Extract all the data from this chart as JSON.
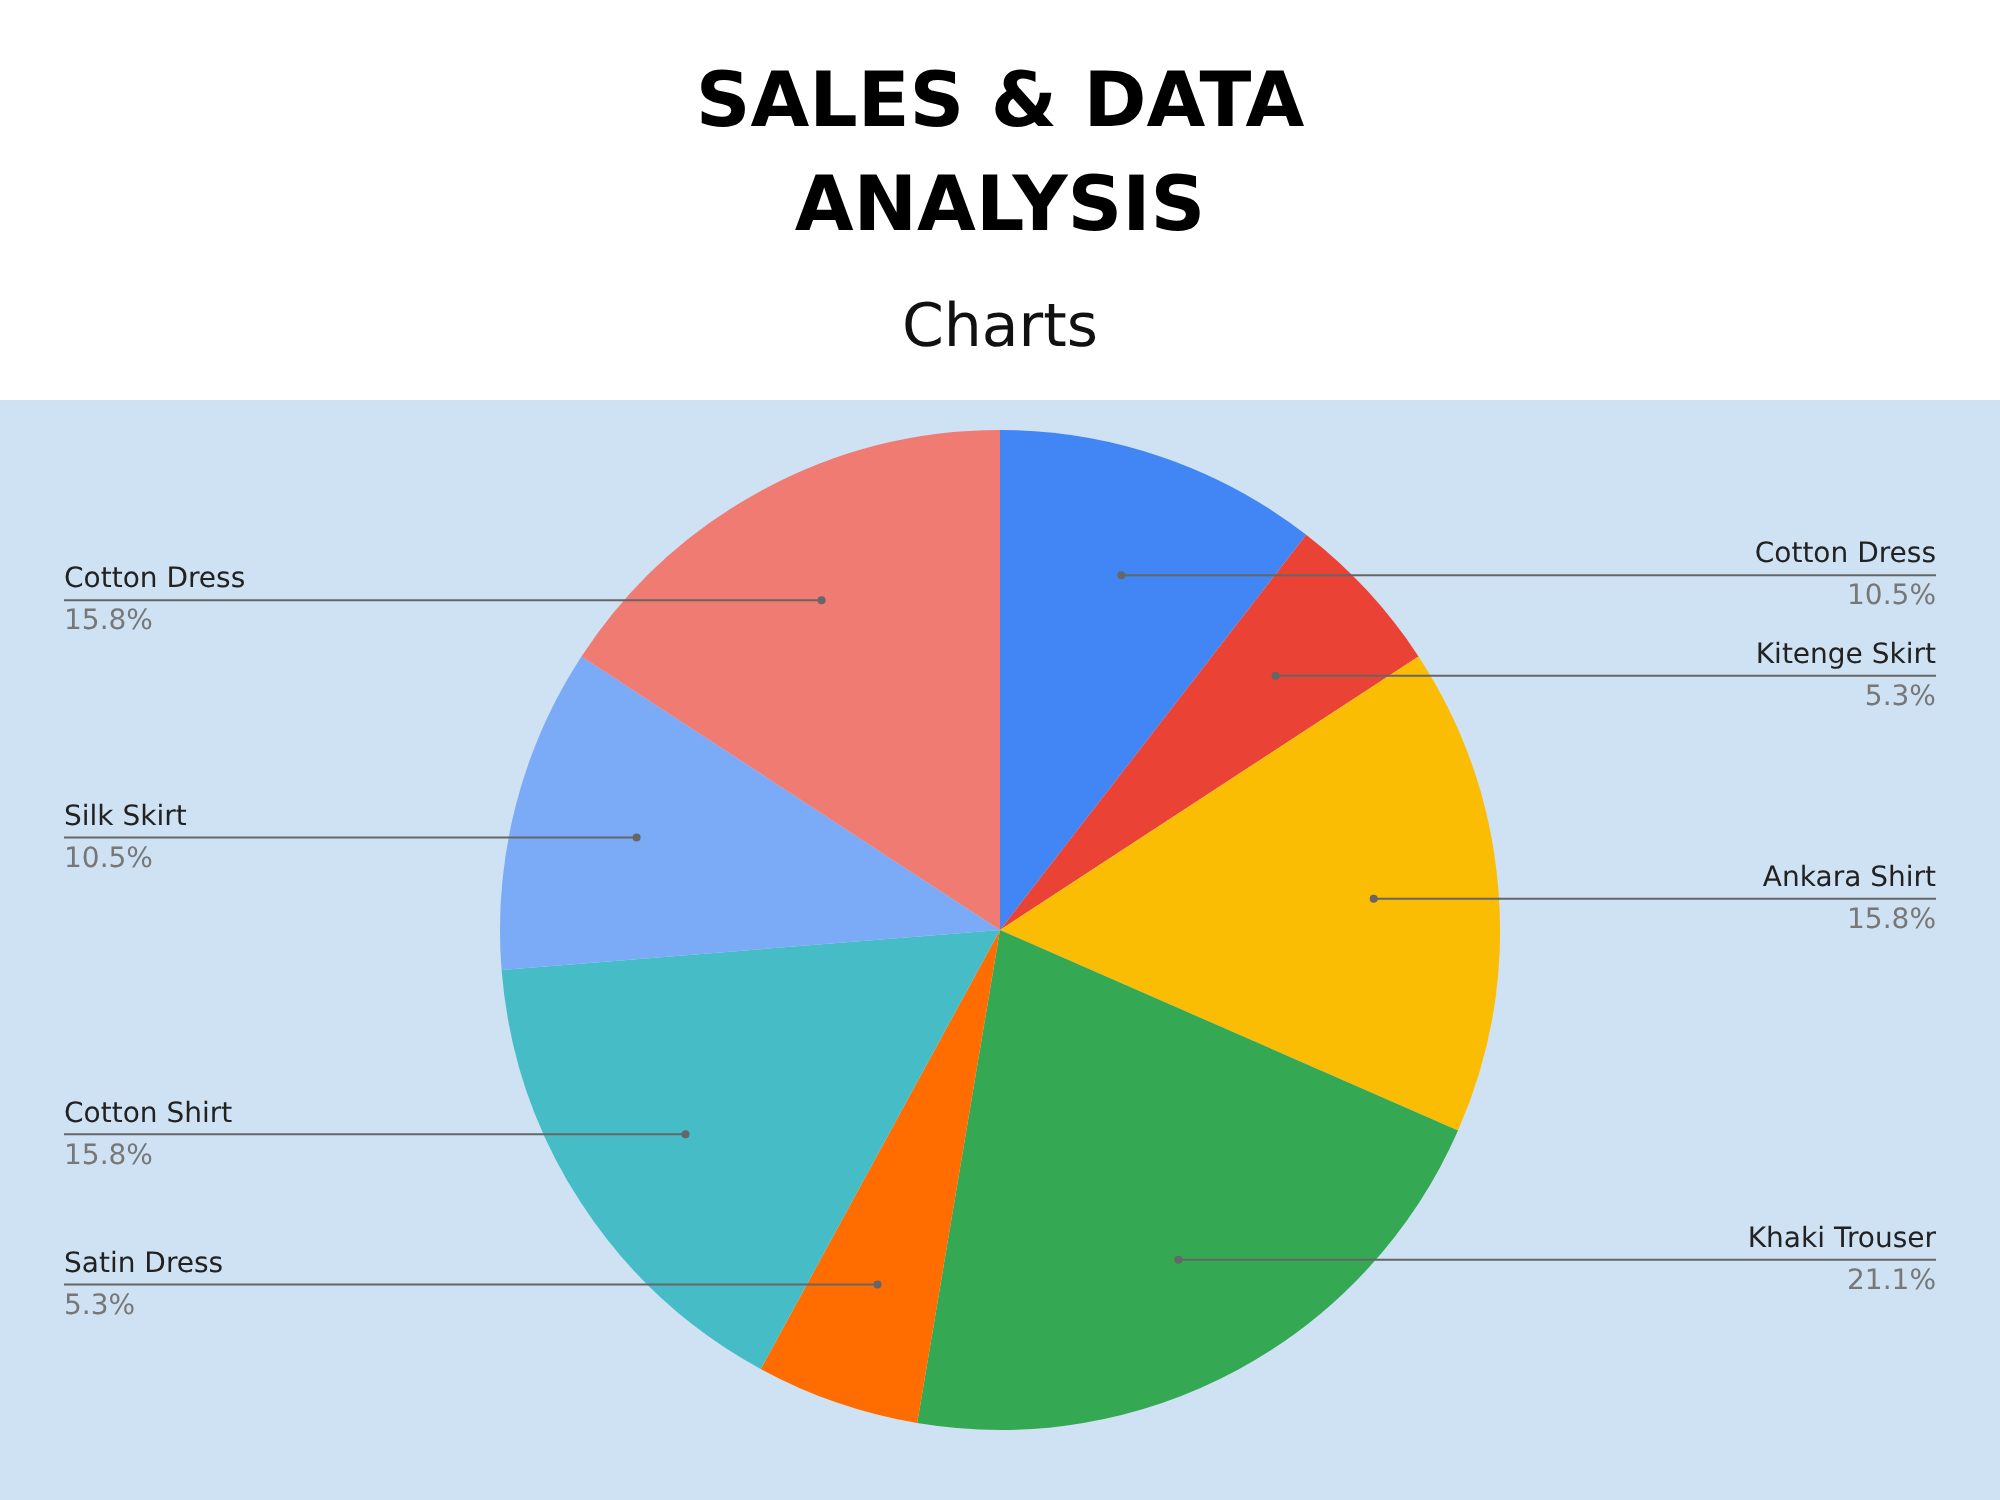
{
  "chart_data": {
    "type": "pie",
    "title": "SALES & DATA ANALYSIS",
    "subtitle": "Charts",
    "categories": [
      "Cotton Dress",
      "Kitenge Skirt",
      "Ankara Shirt",
      "Khaki Trouser",
      "Satin Dress",
      "Cotton Shirt",
      "Silk Skirt",
      "Cotton Dress"
    ],
    "values": [
      10.5,
      5.3,
      15.8,
      21.1,
      5.3,
      15.8,
      10.5,
      15.8
    ],
    "value_labels": [
      "10.5%",
      "5.3%",
      "15.8%",
      "21.1%",
      "5.3%",
      "15.8%",
      "10.5%",
      "15.8%"
    ],
    "colors": [
      "#4285f4",
      "#ea4335",
      "#fbbc04",
      "#34a853",
      "#ff6d01",
      "#46bdc6",
      "#7baaf7",
      "#f07b72"
    ],
    "legend": false
  }
}
